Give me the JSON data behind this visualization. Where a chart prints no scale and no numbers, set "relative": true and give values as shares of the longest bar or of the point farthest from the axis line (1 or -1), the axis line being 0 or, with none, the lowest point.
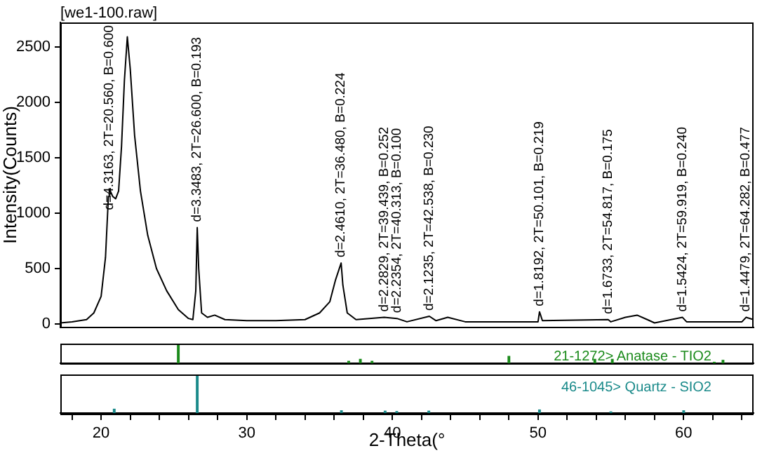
{
  "chart_data": [
    {
      "type": "line",
      "title": "[we1-100.raw]",
      "ylabel": "Intensity(Counts)",
      "xlim": [
        17.2,
        64.8
      ],
      "ylim": [
        -30,
        2720
      ],
      "yticks": [
        0,
        500,
        1000,
        1500,
        2000,
        2500
      ],
      "tick_labels": "y",
      "marker": "none",
      "line_style": "solid",
      "series": [
        {
          "color": "#000000",
          "x": [
            17.2,
            18,
            19,
            19.5,
            20,
            20.3,
            20.5,
            20.56,
            20.8,
            21,
            21.2,
            21.4,
            21.6,
            21.8,
            22,
            22.3,
            22.7,
            23.2,
            23.8,
            24.5,
            25.3,
            26,
            26.3,
            26.5,
            26.6,
            26.7,
            26.9,
            27.3,
            27.8,
            28.5,
            30,
            32,
            34,
            35,
            35.7,
            36.1,
            36.48,
            36.6,
            36.9,
            37.5,
            39.439,
            40.313,
            41,
            42.538,
            43,
            43.8,
            45,
            50,
            50.101,
            50.3,
            54.817,
            55,
            56,
            56.8,
            57.5,
            58,
            59.919,
            60.2,
            64,
            64.282,
            64.8
          ],
          "values": [
            10,
            20,
            40,
            100,
            250,
            600,
            1150,
            1220,
            1150,
            1130,
            1200,
            1600,
            2200,
            2590,
            2300,
            1700,
            1200,
            800,
            500,
            300,
            130,
            50,
            40,
            300,
            870,
            500,
            100,
            60,
            80,
            40,
            30,
            30,
            40,
            100,
            200,
            400,
            550,
            350,
            100,
            40,
            60,
            50,
            20,
            70,
            30,
            60,
            20,
            20,
            110,
            30,
            40,
            20,
            60,
            80,
            40,
            10,
            60,
            20,
            20,
            60,
            40
          ]
        }
      ],
      "annotations": [
        {
          "text": "d=4.3163, 2T=20.560, B=0.600",
          "x": 20.56,
          "y": 1220
        },
        {
          "text": "d=3.3483, 2T=26.600, B=0.193",
          "x": 26.6,
          "y": 870
        },
        {
          "text": "d=2.4610, 2T=36.480, B=0.224",
          "x": 36.48,
          "y": 550
        },
        {
          "text": "d=2.2829, 2T=39.439, B=0.252",
          "x": 39.439,
          "y": 60
        },
        {
          "text": "d=2.2354, 2T=40.313, B=0.100",
          "x": 40.313,
          "y": 50
        },
        {
          "text": "d=2.1235, 2T=42.538, B=0.230",
          "x": 42.538,
          "y": 70
        },
        {
          "text": "d=1.8192, 2T=50.101, B=0.219",
          "x": 50.101,
          "y": 110
        },
        {
          "text": "d=1.6733, 2T=54.817, B=0.175",
          "x": 54.817,
          "y": 40
        },
        {
          "text": "d=1.5424, 2T=59.919, B=0.240",
          "x": 59.919,
          "y": 60
        },
        {
          "text": "d=1.4479, 2T=64.282, B=0.477",
          "x": 64.282,
          "y": 60
        }
      ]
    },
    {
      "type": "bar",
      "relative": true,
      "xlim": [
        17.2,
        64.8
      ],
      "tick_labels": false,
      "series": [
        {
          "name": "21-1272> Anatase - TIO2",
          "color": "#1a8a1a",
          "x": [
            25.3,
            37.0,
            37.8,
            38.6,
            48.0,
            53.9,
            55.1,
            62.1,
            62.7
          ],
          "values": [
            1,
            0.1,
            0.2,
            0.1,
            0.35,
            0.2,
            0.2,
            0.05,
            0.15
          ]
        }
      ]
    },
    {
      "type": "bar",
      "relative": true,
      "xlim": [
        17.2,
        64.8
      ],
      "xlabel": "2-Theta(°",
      "tick_labels": "x",
      "xticks": [
        {
          "value": 18,
          "label": null
        },
        20,
        {
          "value": 22,
          "label": null
        },
        {
          "value": 24,
          "label": null
        },
        {
          "value": 26,
          "label": null
        },
        {
          "value": 28,
          "label": null
        },
        30,
        {
          "value": 32,
          "label": null
        },
        {
          "value": 34,
          "label": null
        },
        {
          "value": 36,
          "label": null
        },
        {
          "value": 38,
          "label": null
        },
        40,
        {
          "value": 42,
          "label": null
        },
        {
          "value": 44,
          "label": null
        },
        {
          "value": 46,
          "label": null
        },
        {
          "value": 48,
          "label": null
        },
        50,
        {
          "value": 52,
          "label": null
        },
        {
          "value": 54,
          "label": null
        },
        {
          "value": 56,
          "label": null
        },
        {
          "value": 58,
          "label": null
        },
        60,
        {
          "value": 62,
          "label": null
        },
        {
          "value": 64,
          "label": null
        }
      ],
      "series": [
        {
          "name": "46-1045> Quartz - SIO2",
          "color": "#1a8a8a",
          "x": [
            20.9,
            26.6,
            36.5,
            39.5,
            40.3,
            42.5,
            50.1,
            55.0,
            60.0
          ],
          "values": [
            0.1,
            1,
            0.06,
            0.05,
            0.04,
            0.05,
            0.08,
            0.03,
            0.06
          ]
        }
      ]
    }
  ]
}
